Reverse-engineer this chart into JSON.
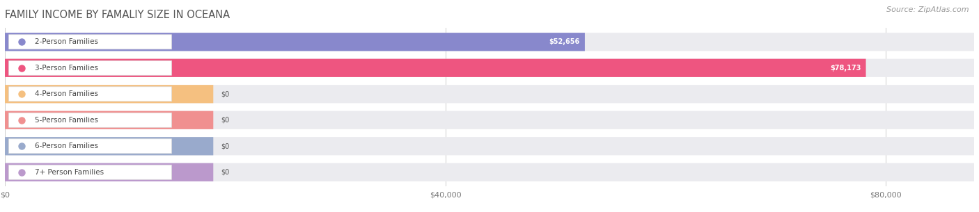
{
  "title": "FAMILY INCOME BY FAMALIY SIZE IN OCEANA",
  "source": "Source: ZipAtlas.com",
  "categories": [
    "2-Person Families",
    "3-Person Families",
    "4-Person Families",
    "5-Person Families",
    "6-Person Families",
    "7+ Person Families"
  ],
  "values": [
    52656,
    78173,
    0,
    0,
    0,
    0
  ],
  "bar_colors": [
    "#8888cc",
    "#ee5580",
    "#f5c080",
    "#f09090",
    "#99aacc",
    "#bb99cc"
  ],
  "value_labels": [
    "$52,656",
    "$78,173",
    "$0",
    "$0",
    "$0",
    "$0"
  ],
  "xmax": 88000,
  "xtick_vals": [
    0,
    40000,
    80000
  ],
  "xtick_labels": [
    "$0",
    "$40,000",
    "$80,000"
  ],
  "background_color": "#ffffff",
  "bar_background_color": "#ebebef",
  "row_background_color": "#f5f5fa",
  "title_fontsize": 10.5,
  "source_fontsize": 8,
  "label_fontsize": 7.5,
  "value_fontsize": 7
}
